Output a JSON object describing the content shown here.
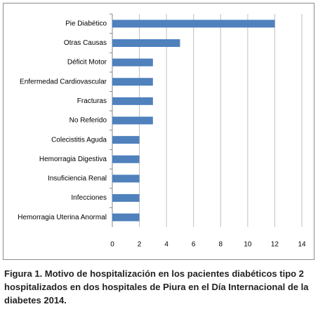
{
  "chart_data": {
    "type": "bar",
    "orientation": "horizontal",
    "categories": [
      "Pie Diabético",
      "Otras Causas",
      "Déficit Motor",
      "Enfermedad Cardiovascular",
      "Fracturas",
      "No Referido",
      "Colecistitis Aguda",
      "Hemorragia Digestiva",
      "Insuficiencia Renal",
      "Infecciones",
      "Hemorragia Uterina Anormal"
    ],
    "values": [
      12,
      5,
      3,
      3,
      3,
      3,
      2,
      2,
      2,
      2,
      2
    ],
    "color": "#4f81bd",
    "xlim": [
      0,
      14
    ],
    "xticks": [
      0,
      2,
      4,
      6,
      8,
      10,
      12,
      14
    ],
    "grid": true,
    "caption": "Figura 1. Motivo de hospitalización en los pacientes diabéticos tipo 2 hospitalizados en dos hospitales de Piura en el Día Internacional de la diabetes 2014."
  }
}
